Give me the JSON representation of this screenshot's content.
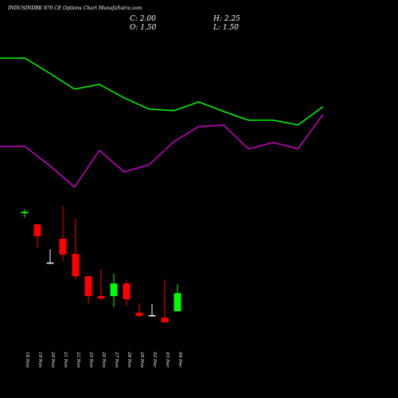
{
  "chart_data": [
    {
      "type": "candlestick",
      "title": "INDUSINDBK 970 CE Options Chart MunafaSutra.com",
      "ohlc_labels": [
        "C: 2.00",
        "H: 2.25",
        "O: 1.50",
        "L: 1.50"
      ],
      "categories": [
        "18 Nov",
        "19 Nov",
        "20 Nov",
        "21 Nov",
        "22 Nov",
        "25 Nov",
        "26 Nov",
        "27 Nov",
        "28 Nov",
        "29 Nov",
        "02 Dec",
        "03 Dec",
        "04 Dec"
      ],
      "open": [
        4.22,
        3.91,
        2.85,
        3.51,
        3.09,
        2.47,
        1.92,
        1.92,
        2.27,
        1.46,
        1.39,
        1.32,
        1.5
      ],
      "high": [
        4.33,
        3.91,
        3.22,
        4.41,
        4.06,
        2.47,
        2.67,
        2.54,
        2.36,
        1.72,
        1.7,
        2.38,
        2.25
      ],
      "low": [
        4.1,
        3.24,
        2.82,
        2.89,
        2.38,
        1.72,
        1.81,
        1.61,
        1.65,
        1.32,
        1.35,
        1.19,
        1.5
      ],
      "close": [
        4.26,
        3.58,
        2.85,
        3.07,
        2.47,
        1.92,
        1.85,
        2.27,
        1.83,
        1.37,
        1.39,
        1.19,
        2.0
      ],
      "up_color": "#00ff00",
      "down_color": "#ff0000",
      "flat_color": "#ffffff",
      "ylim": [
        1.0,
        4.6
      ]
    },
    {
      "type": "line",
      "series": [
        {
          "color": "#00ff00",
          "values": [
            177,
            177,
            158,
            138,
            144,
            127,
            113,
            111,
            122,
            110,
            99,
            99,
            93,
            116
          ]
        },
        {
          "color": "#cc00cc",
          "values": [
            66,
            66,
            42,
            15,
            61,
            34,
            43,
            72,
            91,
            93,
            63,
            71,
            63,
            106
          ]
        }
      ],
      "ylim": [
        0,
        200
      ]
    }
  ]
}
